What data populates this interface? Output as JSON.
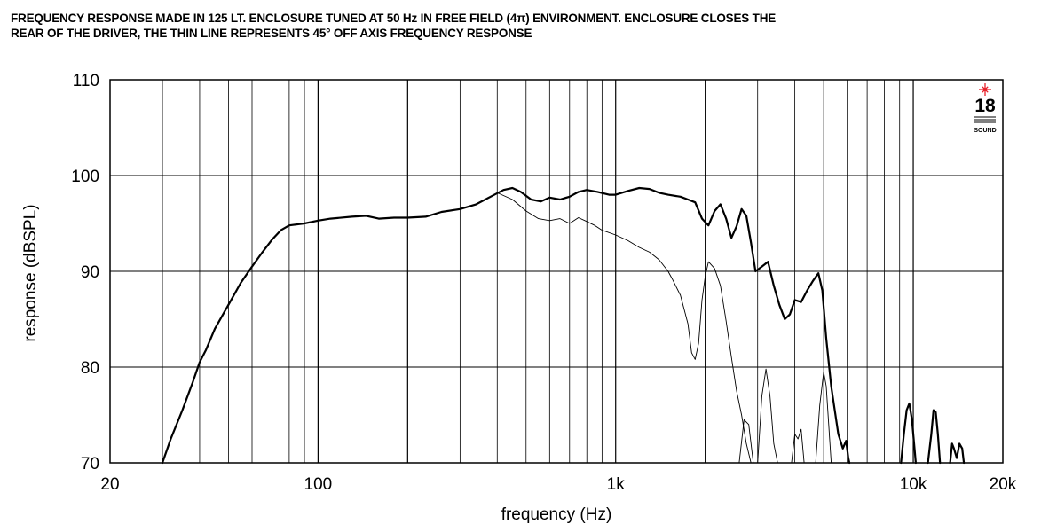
{
  "title_lines": [
    "FREQUENCY RESPONSE MADE IN 125 LT. ENCLOSURE TUNED AT 50 Hz IN FREE FIELD (4π) ENVIRONMENT. ENCLOSURE CLOSES THE",
    "REAR OF THE DRIVER, THE THIN LINE REPRESENTS 45° OFF AXIS FREQUENCY RESPONSE"
  ],
  "logo": {
    "text": "18",
    "subtext": "SOUND",
    "star_color": "#e8202a"
  },
  "chart_data": {
    "type": "line",
    "xlabel": "frequency (Hz)",
    "ylabel": "response (dBSPL)",
    "x_scale": "log",
    "xlim": [
      20,
      20000
    ],
    "ylim": [
      70,
      110
    ],
    "grid": true,
    "x_tick_labels": [
      {
        "value": 20,
        "label": "20"
      },
      {
        "value": 100,
        "label": "100"
      },
      {
        "value": 1000,
        "label": "1k"
      },
      {
        "value": 10000,
        "label": "10k"
      },
      {
        "value": 20000,
        "label": "20k"
      }
    ],
    "y_tick_labels": [
      {
        "value": 70,
        "label": "70"
      },
      {
        "value": 80,
        "label": "80"
      },
      {
        "value": 90,
        "label": "90"
      },
      {
        "value": 100,
        "label": "100"
      },
      {
        "value": 110,
        "label": "110"
      }
    ],
    "series": [
      {
        "style": "thick",
        "points": [
          [
            30,
            70
          ],
          [
            32,
            72.5
          ],
          [
            35,
            75.5
          ],
          [
            38,
            78.5
          ],
          [
            40,
            80.5
          ],
          [
            42,
            81.8
          ],
          [
            45,
            84
          ],
          [
            50,
            86.5
          ],
          [
            55,
            88.8
          ],
          [
            60,
            90.5
          ],
          [
            65,
            92
          ],
          [
            70,
            93.3
          ],
          [
            75,
            94.3
          ],
          [
            80,
            94.8
          ],
          [
            90,
            95
          ],
          [
            100,
            95.3
          ],
          [
            110,
            95.5
          ],
          [
            130,
            95.7
          ],
          [
            145,
            95.8
          ],
          [
            160,
            95.5
          ],
          [
            180,
            95.6
          ],
          [
            200,
            95.6
          ],
          [
            230,
            95.7
          ],
          [
            260,
            96.2
          ],
          [
            300,
            96.5
          ],
          [
            340,
            97
          ],
          [
            380,
            97.8
          ],
          [
            420,
            98.5
          ],
          [
            450,
            98.7
          ],
          [
            480,
            98.3
          ],
          [
            520,
            97.5
          ],
          [
            560,
            97.3
          ],
          [
            600,
            97.7
          ],
          [
            650,
            97.5
          ],
          [
            700,
            97.8
          ],
          [
            750,
            98.3
          ],
          [
            800,
            98.5
          ],
          [
            870,
            98.3
          ],
          [
            950,
            98
          ],
          [
            1000,
            98
          ],
          [
            1100,
            98.4
          ],
          [
            1200,
            98.7
          ],
          [
            1300,
            98.6
          ],
          [
            1400,
            98.2
          ],
          [
            1500,
            98
          ],
          [
            1650,
            97.8
          ],
          [
            1750,
            97.5
          ],
          [
            1850,
            97.2
          ],
          [
            1950,
            95.5
          ],
          [
            2050,
            94.8
          ],
          [
            2150,
            96.3
          ],
          [
            2250,
            97
          ],
          [
            2350,
            95.5
          ],
          [
            2450,
            93.5
          ],
          [
            2550,
            94.7
          ],
          [
            2650,
            96.5
          ],
          [
            2750,
            95.8
          ],
          [
            2850,
            93
          ],
          [
            2950,
            90
          ],
          [
            3100,
            90.5
          ],
          [
            3250,
            91
          ],
          [
            3400,
            88.5
          ],
          [
            3550,
            86.5
          ],
          [
            3700,
            85
          ],
          [
            3850,
            85.5
          ],
          [
            4000,
            87
          ],
          [
            4200,
            86.8
          ],
          [
            4400,
            88
          ],
          [
            4600,
            89
          ],
          [
            4800,
            89.8
          ],
          [
            4950,
            88
          ],
          [
            5100,
            83
          ],
          [
            5300,
            78
          ],
          [
            5600,
            73
          ],
          [
            5800,
            71.5
          ],
          [
            5950,
            72.3
          ],
          [
            6050,
            70.5
          ],
          [
            6100,
            70
          ]
        ],
        "extra_segments": [
          [
            [
              9100,
              70
            ],
            [
              9300,
              73
            ],
            [
              9500,
              75.5
            ],
            [
              9700,
              76.2
            ],
            [
              9900,
              74.5
            ],
            [
              10100,
              71.5
            ],
            [
              10200,
              70
            ]
          ],
          [
            [
              11200,
              70
            ],
            [
              11500,
              73
            ],
            [
              11700,
              75.5
            ],
            [
              11900,
              75.3
            ],
            [
              12100,
              73
            ],
            [
              12300,
              70
            ]
          ],
          [
            [
              13300,
              70
            ],
            [
              13500,
              72
            ],
            [
              13700,
              71.5
            ],
            [
              14000,
              70.5
            ],
            [
              14300,
              72
            ],
            [
              14600,
              71.5
            ],
            [
              14800,
              70
            ]
          ]
        ]
      },
      {
        "style": "thin",
        "points": [
          [
            400,
            98.2
          ],
          [
            450,
            97.5
          ],
          [
            500,
            96.3
          ],
          [
            550,
            95.5
          ],
          [
            600,
            95.3
          ],
          [
            650,
            95.5
          ],
          [
            700,
            95
          ],
          [
            750,
            95.6
          ],
          [
            800,
            95.2
          ],
          [
            850,
            94.8
          ],
          [
            900,
            94.3
          ],
          [
            1000,
            93.8
          ],
          [
            1100,
            93.2
          ],
          [
            1200,
            92.5
          ],
          [
            1300,
            92
          ],
          [
            1400,
            91.2
          ],
          [
            1500,
            90
          ],
          [
            1550,
            89.2
          ],
          [
            1650,
            87.5
          ],
          [
            1700,
            86
          ],
          [
            1750,
            84.5
          ],
          [
            1800,
            81.5
          ],
          [
            1850,
            80.8
          ],
          [
            1900,
            82.5
          ],
          [
            1950,
            87
          ],
          [
            2000,
            89.5
          ],
          [
            2050,
            91
          ],
          [
            2150,
            90.3
          ],
          [
            2250,
            88.5
          ],
          [
            2350,
            84.8
          ],
          [
            2450,
            81
          ],
          [
            2550,
            77.5
          ],
          [
            2650,
            75
          ],
          [
            2750,
            72
          ],
          [
            2850,
            70
          ]
        ],
        "extra_segments": [
          [
            [
              3000,
              70
            ],
            [
              3100,
              77
            ],
            [
              3200,
              79.8
            ],
            [
              3300,
              77
            ],
            [
              3400,
              72
            ],
            [
              3500,
              70
            ]
          ],
          [
            [
              3900,
              70
            ],
            [
              4000,
              73
            ],
            [
              4100,
              72.5
            ],
            [
              4200,
              73.5
            ],
            [
              4300,
              70
            ]
          ],
          [
            [
              4700,
              70
            ],
            [
              4850,
              76
            ],
            [
              5000,
              79.5
            ],
            [
              5100,
              78
            ],
            [
              5200,
              74
            ],
            [
              5300,
              70
            ]
          ],
          [
            [
              2600,
              70
            ],
            [
              2700,
              74.5
            ],
            [
              2800,
              74
            ],
            [
              2900,
              70
            ]
          ]
        ]
      }
    ]
  }
}
